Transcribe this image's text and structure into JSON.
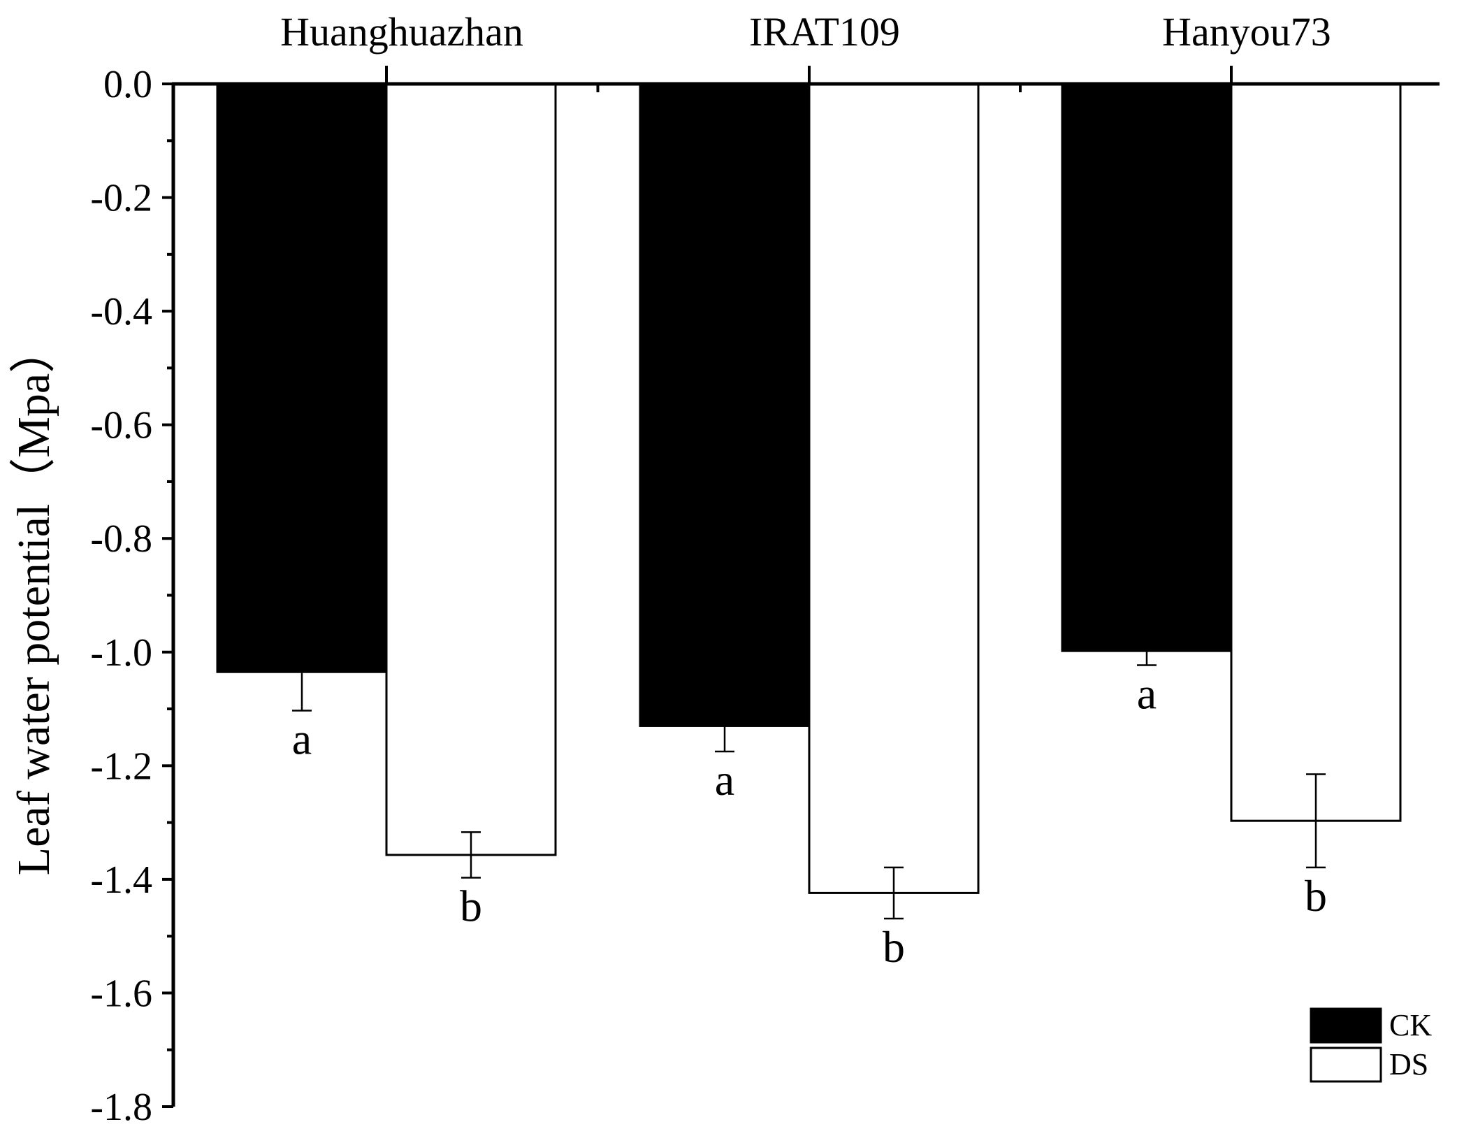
{
  "chart_data": {
    "type": "bar",
    "title": "",
    "xlabel": "",
    "ylabel": "Leaf water potential（Mpa）",
    "ylim": [
      -1.8,
      0.0
    ],
    "y_ticks": [
      "0.0",
      "-0.2",
      "-0.4",
      "-0.6",
      "-0.8",
      "-1.0",
      "-1.2",
      "-1.4",
      "-1.6",
      "-1.8"
    ],
    "y_tick_values": [
      0.0,
      -0.2,
      -0.4,
      -0.6,
      -0.8,
      -1.0,
      -1.2,
      -1.4,
      -1.6,
      -1.8
    ],
    "x_axis_position": "top",
    "grid": false,
    "categories": [
      "Huanghuazhan",
      "IRAT109",
      "Hanyou73"
    ],
    "series": [
      {
        "name": "CK",
        "color": "#000000",
        "values": [
          -1.035,
          -1.13,
          -0.998
        ],
        "errors": [
          0.068,
          0.045,
          0.025
        ],
        "letters": [
          "a",
          "a",
          "a"
        ]
      },
      {
        "name": "DS",
        "color": "#ffffff",
        "values": [
          -1.357,
          -1.424,
          -1.297
        ],
        "errors": [
          0.04,
          0.045,
          0.082
        ],
        "letters": [
          "b",
          "b",
          "b"
        ]
      }
    ],
    "legend": {
      "position": "bottom-right",
      "entries": [
        "CK",
        "DS"
      ]
    }
  }
}
